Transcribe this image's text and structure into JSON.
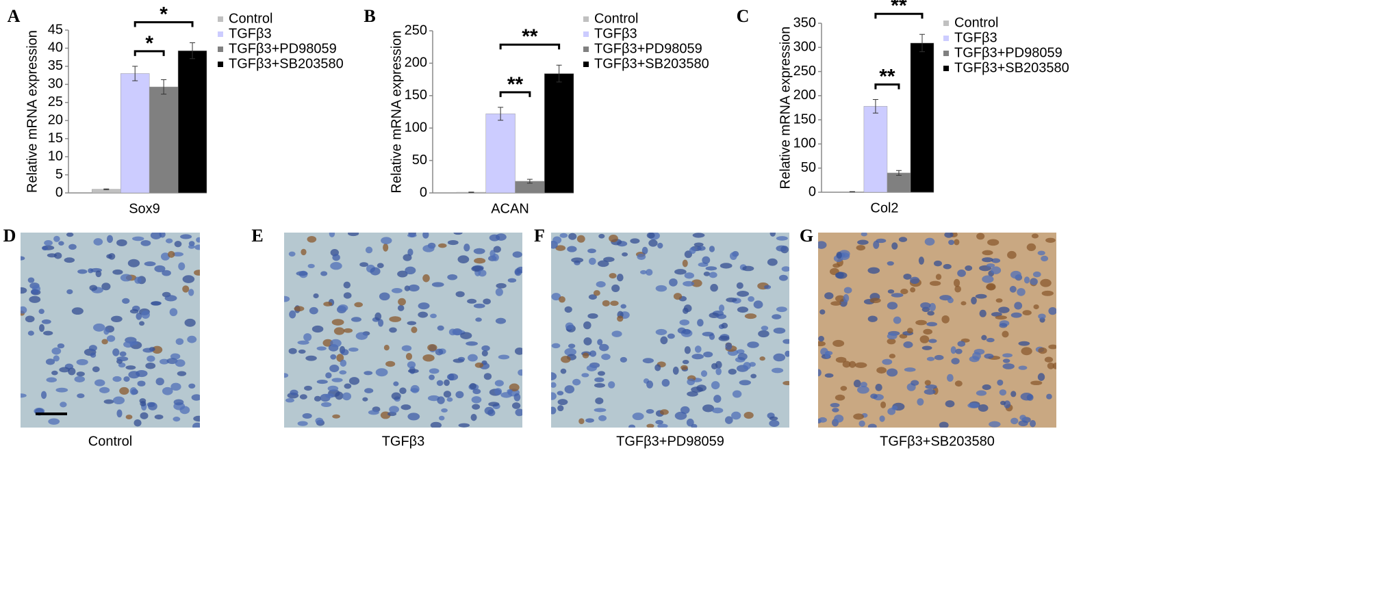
{
  "chart_data": [
    {
      "type": "bar",
      "panel": "A",
      "ylabel": "Relative mRNA expression",
      "categories": [
        "Sox9"
      ],
      "ylim": [
        0,
        45
      ],
      "yticks": [
        0,
        5,
        10,
        15,
        20,
        25,
        30,
        35,
        40,
        45
      ],
      "series": [
        {
          "name": "Control",
          "color": "#c0c0c0",
          "values": [
            1
          ],
          "errors": [
            0.1
          ]
        },
        {
          "name": "TGFβ3",
          "color": "#ccccff",
          "values": [
            33
          ],
          "errors": [
            2
          ]
        },
        {
          "name": "TGFβ3+PD98059",
          "color": "#808080",
          "values": [
            29.3
          ],
          "errors": [
            2
          ]
        },
        {
          "name": "TGFβ3+SB203580",
          "color": "#000000",
          "values": [
            39.3
          ],
          "errors": [
            2.2
          ]
        }
      ],
      "annotations": [
        {
          "text": "*",
          "pair": [
            1,
            2
          ]
        },
        {
          "text": "*",
          "pair": [
            1,
            3
          ]
        }
      ]
    },
    {
      "type": "bar",
      "panel": "B",
      "ylabel": "Relative mRNA expression",
      "categories": [
        "ACAN"
      ],
      "ylim": [
        0,
        250
      ],
      "yticks": [
        0,
        50,
        100,
        150,
        200,
        250
      ],
      "series": [
        {
          "name": "Control",
          "color": "#c0c0c0",
          "values": [
            1
          ],
          "errors": [
            0.3
          ]
        },
        {
          "name": "TGFβ3",
          "color": "#ccccff",
          "values": [
            122
          ],
          "errors": [
            10
          ]
        },
        {
          "name": "TGFβ3+PD98059",
          "color": "#808080",
          "values": [
            18
          ],
          "errors": [
            3
          ]
        },
        {
          "name": "TGFβ3+SB203580",
          "color": "#000000",
          "values": [
            184
          ],
          "errors": [
            13
          ]
        }
      ],
      "annotations": [
        {
          "text": "**",
          "pair": [
            1,
            2
          ]
        },
        {
          "text": "**",
          "pair": [
            1,
            3
          ]
        }
      ]
    },
    {
      "type": "bar",
      "panel": "C",
      "ylabel": "Relative mRNA expression",
      "categories": [
        "Col2"
      ],
      "ylim": [
        0,
        350
      ],
      "yticks": [
        0,
        50,
        100,
        150,
        200,
        250,
        300,
        350
      ],
      "series": [
        {
          "name": "Control",
          "color": "#c0c0c0",
          "values": [
            1
          ],
          "errors": [
            0.3
          ]
        },
        {
          "name": "TGFβ3",
          "color": "#ccccff",
          "values": [
            178
          ],
          "errors": [
            14
          ]
        },
        {
          "name": "TGFβ3+PD98059",
          "color": "#808080",
          "values": [
            40
          ],
          "errors": [
            5
          ]
        },
        {
          "name": "TGFβ3+SB203580",
          "color": "#000000",
          "values": [
            309
          ],
          "errors": [
            18
          ]
        }
      ],
      "annotations": [
        {
          "text": "**",
          "pair": [
            1,
            2
          ]
        },
        {
          "text": "**",
          "pair": [
            1,
            3
          ]
        }
      ]
    }
  ],
  "images": [
    {
      "panel": "D",
      "caption": "Control"
    },
    {
      "panel": "E",
      "caption": "TGFβ3"
    },
    {
      "panel": "F",
      "caption": "TGFβ3+PD98059"
    },
    {
      "panel": "G",
      "caption": "TGFβ3+SB203580"
    }
  ]
}
